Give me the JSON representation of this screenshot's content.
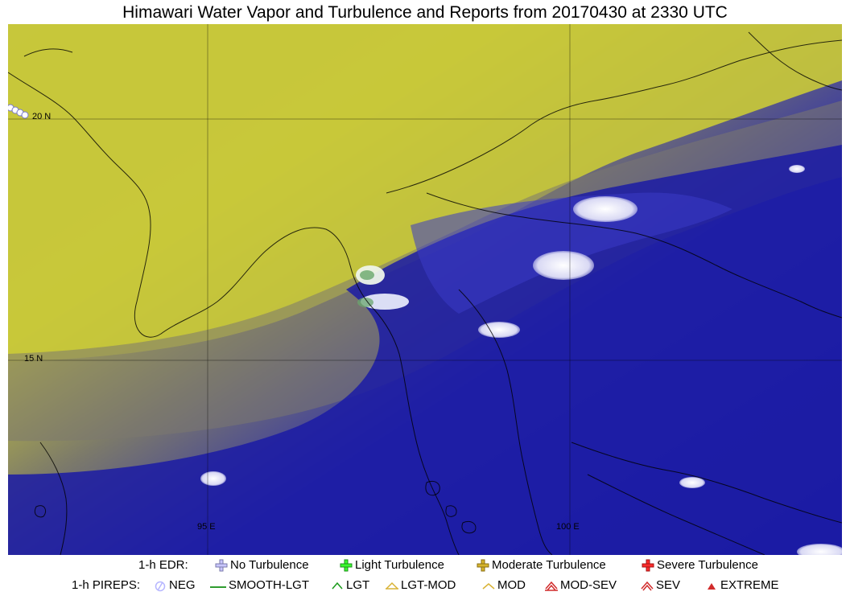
{
  "title": "Himawari Water Vapor and Turbulence and Reports from 20170430 at 2330 UTC",
  "map": {
    "grid_labels": {
      "lat_20": "20 N",
      "lat_15": "15 N",
      "lon_95": "95 E",
      "lon_100": "100 E"
    },
    "colors": {
      "dry_high": "#c8c83a",
      "moist_low": "#1a1aa6",
      "cloud": "#e7e7f7",
      "boundary": "#000000"
    }
  },
  "legend": {
    "edr_label": "1-h EDR:",
    "edr_items": [
      {
        "label": "No Turbulence",
        "color": "#c9c7ff",
        "icon": "plus-icon"
      },
      {
        "label": "Light Turbulence",
        "color": "#3cff2e",
        "icon": "plus-icon"
      },
      {
        "label": "Moderate Turbulence",
        "color": "#d6b52e",
        "icon": "plus-icon"
      },
      {
        "label": "Severe Turbulence",
        "color": "#ff2d2d",
        "icon": "plus-icon"
      }
    ],
    "pireps_label": "1-h PIREPS:",
    "pireps_items": [
      {
        "label": "NEG",
        "color": "#b6b6ff",
        "icon": "neg-icon"
      },
      {
        "label": "SMOOTH-LGT",
        "color": "#2f9c2f",
        "icon": "smooth-lgt-icon"
      },
      {
        "label": "LGT",
        "color": "#1a9a1a",
        "icon": "lgt-icon"
      },
      {
        "label": "LGT-MOD",
        "color": "#d9b336",
        "icon": "lgt-mod-icon"
      },
      {
        "label": "MOD",
        "color": "#d9b336",
        "icon": "mod-icon"
      },
      {
        "label": "MOD-SEV",
        "color": "#d12b2b",
        "icon": "mod-sev-icon"
      },
      {
        "label": "SEV",
        "color": "#d12b2b",
        "icon": "sev-icon"
      },
      {
        "label": "EXTREME",
        "color": "#d12b2b",
        "icon": "extreme-icon"
      }
    ]
  }
}
